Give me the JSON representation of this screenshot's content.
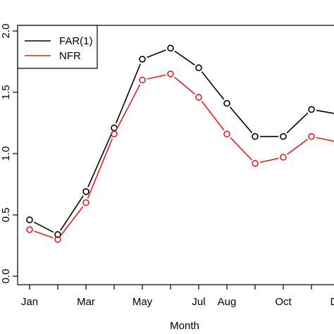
{
  "chart_data": {
    "type": "line",
    "xlabel": "Month",
    "ylabel": "",
    "title": "",
    "ylim": [
      0.0,
      2.0
    ],
    "yticks": [
      0.0,
      0.5,
      1.0,
      1.5,
      2.0
    ],
    "ytick_labels": [
      "0.0",
      "0.5",
      "1.0",
      "1.5",
      "2.0"
    ],
    "x": [
      1,
      2,
      3,
      4,
      5,
      6,
      7,
      8,
      9,
      10,
      11,
      12
    ],
    "xticks": [
      1,
      2,
      3,
      4,
      5,
      6,
      7,
      8,
      9,
      10,
      11,
      12
    ],
    "xtick_labels": [
      "Jan",
      "",
      "Mar",
      "",
      "May",
      "",
      "Jul",
      "Aug",
      "",
      "Oct",
      "",
      "Dec"
    ],
    "legend_placement": "top-left",
    "grid": false,
    "series": [
      {
        "name": "FAR(1)",
        "color": "#000000",
        "values": [
          0.46,
          0.34,
          0.69,
          1.21,
          1.77,
          1.86,
          1.7,
          1.41,
          1.14,
          1.14,
          1.36,
          1.32
        ]
      },
      {
        "name": "NFR",
        "color": "#DF2020",
        "values": [
          0.38,
          0.3,
          0.6,
          1.16,
          1.6,
          1.65,
          1.46,
          1.16,
          0.92,
          0.97,
          1.14,
          1.09
        ]
      }
    ]
  }
}
